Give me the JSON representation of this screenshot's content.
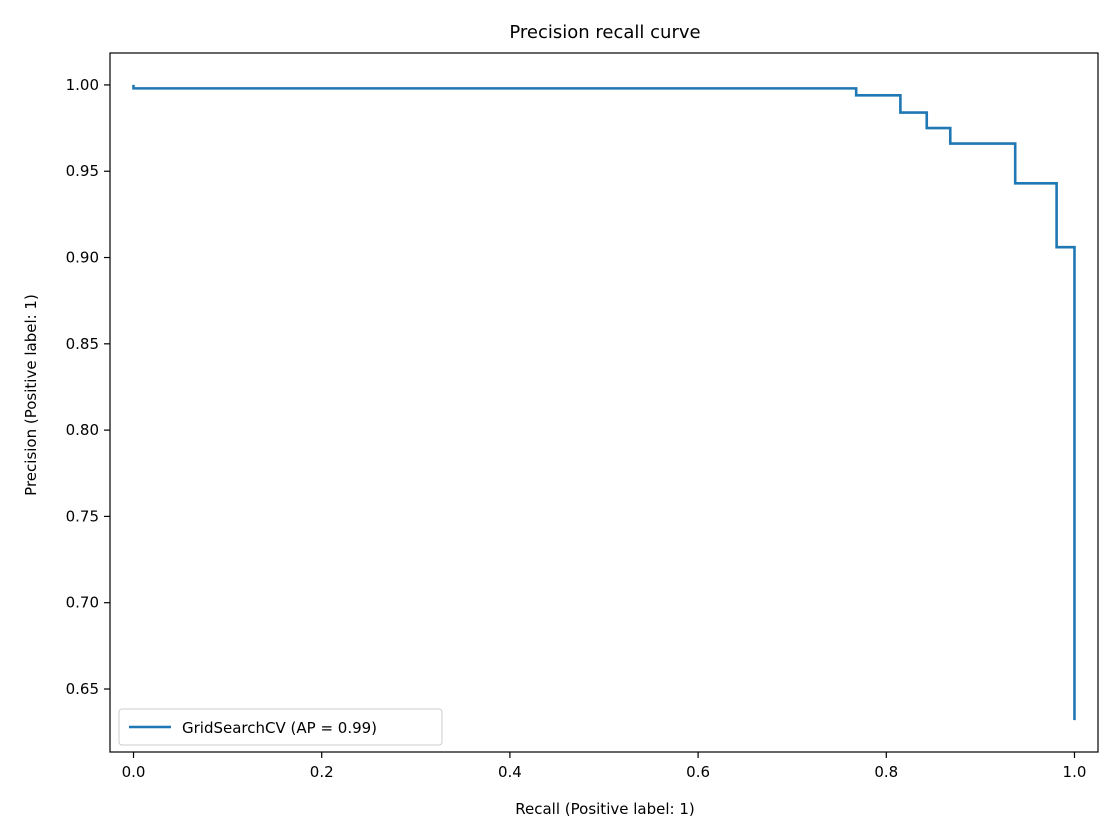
{
  "chart_data": {
    "type": "line",
    "title": "Precision recall curve",
    "xlabel": "Recall (Positive label: 1)",
    "ylabel": "Precision (Positive label: 1)",
    "xlim": [
      -0.025,
      1.025
    ],
    "ylim": [
      0.6135,
      1.0185
    ],
    "xticks": [
      0.0,
      0.2,
      0.4,
      0.6,
      0.8,
      1.0
    ],
    "xtick_labels": [
      "0.0",
      "0.2",
      "0.4",
      "0.6",
      "0.8",
      "1.0"
    ],
    "yticks": [
      0.65,
      0.7,
      0.75,
      0.8,
      0.85,
      0.9,
      0.95,
      1.0
    ],
    "ytick_labels": [
      "0.65",
      "0.70",
      "0.75",
      "0.80",
      "0.85",
      "0.90",
      "0.95",
      "1.00"
    ],
    "grid": false,
    "legend": {
      "position": "lower-left",
      "entries": [
        "GridSearchCV (AP = 0.99)"
      ]
    },
    "series": [
      {
        "name": "GridSearchCV (AP = 0.99)",
        "color": "#1f77b4",
        "drawstyle": "steps-post",
        "recall": [
          0.0,
          0.0,
          0.768,
          0.768,
          0.815,
          0.815,
          0.843,
          0.843,
          0.868,
          0.868,
          0.937,
          0.937,
          0.981,
          0.981,
          1.0,
          1.0
        ],
        "precision": [
          1.0,
          0.998,
          0.998,
          0.994,
          0.994,
          0.984,
          0.984,
          0.975,
          0.975,
          0.966,
          0.966,
          0.943,
          0.943,
          0.906,
          0.906,
          0.632
        ]
      }
    ]
  }
}
